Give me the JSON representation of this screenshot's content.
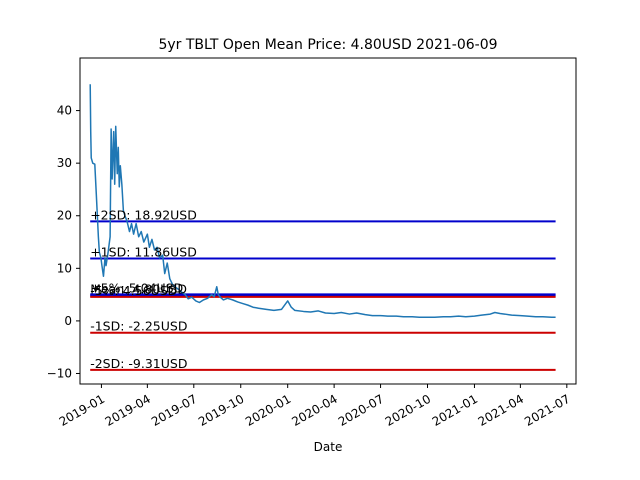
{
  "chart_data": {
    "type": "line",
    "title": "5yr TBLT Open Mean Price: 4.80USD 2021-06-09",
    "xlabel": "Date",
    "ylabel": "",
    "xlim": [
      "2018-11-20",
      "2021-07-19"
    ],
    "ylim": [
      -12,
      50
    ],
    "y_ticks": [
      -10,
      0,
      10,
      20,
      30,
      40
    ],
    "x_ticks": [
      "2019-01",
      "2019-04",
      "2019-07",
      "2019-10",
      "2020-01",
      "2020-04",
      "2020-07",
      "2020-10",
      "2021-01",
      "2021-04",
      "2021-07"
    ],
    "grid": false,
    "line_color": "#1f77b4",
    "series": [
      {
        "points": [
          [
            "2018-12-10",
            45.0
          ],
          [
            "2018-12-11",
            36.0
          ],
          [
            "2018-12-12",
            31.0
          ],
          [
            "2018-12-15",
            30.0
          ],
          [
            "2018-12-19",
            29.8
          ],
          [
            "2018-12-22",
            24.0
          ],
          [
            "2018-12-24",
            20.0
          ],
          [
            "2018-12-26",
            16.0
          ],
          [
            "2018-12-28",
            13.0
          ],
          [
            "2018-12-31",
            12.0
          ],
          [
            "2019-01-02",
            10.5
          ],
          [
            "2019-01-05",
            8.5
          ],
          [
            "2019-01-08",
            12.0
          ],
          [
            "2019-01-10",
            10.5
          ],
          [
            "2019-01-14",
            13.0
          ],
          [
            "2019-01-18",
            16.0
          ],
          [
            "2019-01-20",
            36.5
          ],
          [
            "2019-01-22",
            27.0
          ],
          [
            "2019-01-25",
            36.0
          ],
          [
            "2019-01-27",
            26.0
          ],
          [
            "2019-01-29",
            37.0
          ],
          [
            "2019-02-01",
            28.0
          ],
          [
            "2019-02-03",
            33.0
          ],
          [
            "2019-02-05",
            25.5
          ],
          [
            "2019-02-07",
            29.5
          ],
          [
            "2019-02-10",
            26.0
          ],
          [
            "2019-02-13",
            21.0
          ],
          [
            "2019-02-16",
            20.0
          ],
          [
            "2019-02-20",
            19.0
          ],
          [
            "2019-02-25",
            17.0
          ],
          [
            "2019-03-01",
            18.5
          ],
          [
            "2019-03-05",
            16.5
          ],
          [
            "2019-03-10",
            18.5
          ],
          [
            "2019-03-15",
            16.0
          ],
          [
            "2019-03-20",
            17.0
          ],
          [
            "2019-03-25",
            15.0
          ],
          [
            "2019-04-01",
            16.5
          ],
          [
            "2019-04-05",
            14.0
          ],
          [
            "2019-04-10",
            15.5
          ],
          [
            "2019-04-15",
            13.5
          ],
          [
            "2019-04-20",
            14.0
          ],
          [
            "2019-04-25",
            12.0
          ],
          [
            "2019-05-01",
            12.5
          ],
          [
            "2019-05-05",
            9.0
          ],
          [
            "2019-05-10",
            11.0
          ],
          [
            "2019-05-15",
            8.0
          ],
          [
            "2019-05-20",
            7.0
          ],
          [
            "2019-05-25",
            6.5
          ],
          [
            "2019-06-01",
            6.0
          ],
          [
            "2019-06-07",
            5.5
          ],
          [
            "2019-06-14",
            5.0
          ],
          [
            "2019-06-20",
            4.2
          ],
          [
            "2019-06-27",
            4.5
          ],
          [
            "2019-07-05",
            3.8
          ],
          [
            "2019-07-12",
            3.5
          ],
          [
            "2019-07-20",
            4.0
          ],
          [
            "2019-07-28",
            4.3
          ],
          [
            "2019-08-05",
            5.0
          ],
          [
            "2019-08-10",
            4.6
          ],
          [
            "2019-08-15",
            6.5
          ],
          [
            "2019-08-18",
            5.0
          ],
          [
            "2019-08-22",
            4.5
          ],
          [
            "2019-08-28",
            4.0
          ],
          [
            "2019-09-05",
            4.3
          ],
          [
            "2019-09-15",
            4.0
          ],
          [
            "2019-09-25",
            3.6
          ],
          [
            "2019-10-05",
            3.3
          ],
          [
            "2019-10-15",
            3.0
          ],
          [
            "2019-10-25",
            2.6
          ],
          [
            "2019-11-05",
            2.4
          ],
          [
            "2019-11-20",
            2.2
          ],
          [
            "2019-12-05",
            2.0
          ],
          [
            "2019-12-20",
            2.2
          ],
          [
            "2020-01-01",
            3.8
          ],
          [
            "2020-01-08",
            2.6
          ],
          [
            "2020-01-15",
            2.0
          ],
          [
            "2020-02-01",
            1.8
          ],
          [
            "2020-02-15",
            1.7
          ],
          [
            "2020-03-01",
            1.9
          ],
          [
            "2020-03-15",
            1.5
          ],
          [
            "2020-04-01",
            1.4
          ],
          [
            "2020-04-15",
            1.6
          ],
          [
            "2020-05-01",
            1.3
          ],
          [
            "2020-05-15",
            1.5
          ],
          [
            "2020-06-01",
            1.2
          ],
          [
            "2020-06-15",
            1.0
          ],
          [
            "2020-07-01",
            1.0
          ],
          [
            "2020-07-15",
            0.9
          ],
          [
            "2020-08-01",
            0.9
          ],
          [
            "2020-08-15",
            0.8
          ],
          [
            "2020-09-01",
            0.8
          ],
          [
            "2020-09-15",
            0.7
          ],
          [
            "2020-10-01",
            0.7
          ],
          [
            "2020-10-15",
            0.7
          ],
          [
            "2020-11-01",
            0.8
          ],
          [
            "2020-11-15",
            0.8
          ],
          [
            "2020-12-01",
            0.9
          ],
          [
            "2020-12-15",
            0.8
          ],
          [
            "2021-01-01",
            0.9
          ],
          [
            "2021-01-15",
            1.1
          ],
          [
            "2021-02-01",
            1.3
          ],
          [
            "2021-02-10",
            1.6
          ],
          [
            "2021-02-20",
            1.4
          ],
          [
            "2021-03-01",
            1.3
          ],
          [
            "2021-03-15",
            1.1
          ],
          [
            "2021-04-01",
            1.0
          ],
          [
            "2021-04-15",
            0.9
          ],
          [
            "2021-05-01",
            0.8
          ],
          [
            "2021-05-15",
            0.8
          ],
          [
            "2021-06-01",
            0.7
          ],
          [
            "2021-06-09",
            0.7
          ]
        ]
      }
    ],
    "reference_lines": [
      {
        "label": "+2SD: 18.92USD",
        "value": 18.92,
        "color": "#0000cc"
      },
      {
        "label": "+1SD: 11.86USD",
        "value": 11.86,
        "color": "#0000cc"
      },
      {
        "label": "+5%: 5.04USD",
        "value": 5.04,
        "color": "#0000cc"
      },
      {
        "label": "Mean: 4.80USD",
        "value": 4.8,
        "color": "#0000cc"
      },
      {
        "label": "-5%: 4.56USD",
        "value": 4.56,
        "color": "#cc0000"
      },
      {
        "label": "-1SD: -2.25USD",
        "value": -2.25,
        "color": "#cc0000"
      },
      {
        "label": "-2SD: -9.31USD",
        "value": -9.31,
        "color": "#cc0000"
      }
    ],
    "ref_line_range": [
      "2018-12-10",
      "2021-06-09"
    ]
  }
}
